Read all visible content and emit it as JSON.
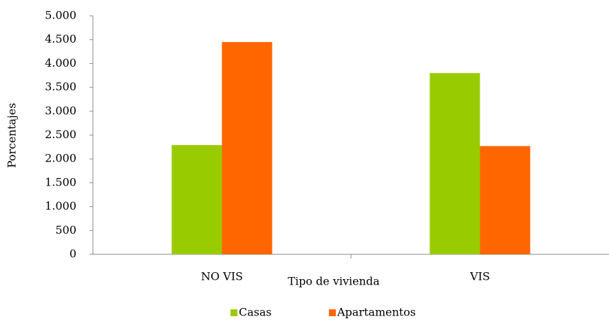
{
  "chart_data": {
    "type": "bar",
    "x_label": "Tipo de vivienda",
    "y_label": "Porcentajes",
    "categories": [
      "NO VIS",
      "VIS"
    ],
    "series": [
      {
        "name": "Casas",
        "color": "#99cc00",
        "values": [
          2290,
          3800
        ]
      },
      {
        "name": "Apartamentos",
        "color": "#ff6600",
        "values": [
          4450,
          2270
        ]
      }
    ],
    "ylim": [
      0,
      5000
    ],
    "yticks": [
      0,
      500,
      {
        "value": 1000,
        "label": "1.000"
      },
      {
        "value": 1500,
        "label": "1.500"
      },
      {
        "value": 2000,
        "label": "2.000"
      },
      {
        "value": 2500,
        "label": "2.500"
      },
      {
        "value": 3000,
        "label": "3.000"
      },
      {
        "value": 3500,
        "label": "3.500"
      },
      {
        "value": 4000,
        "label": "4.000"
      },
      {
        "value": 4500,
        "label": "4.500"
      },
      {
        "value": 5000,
        "label": "5.000"
      }
    ],
    "grid": false,
    "legend": "bottom"
  }
}
